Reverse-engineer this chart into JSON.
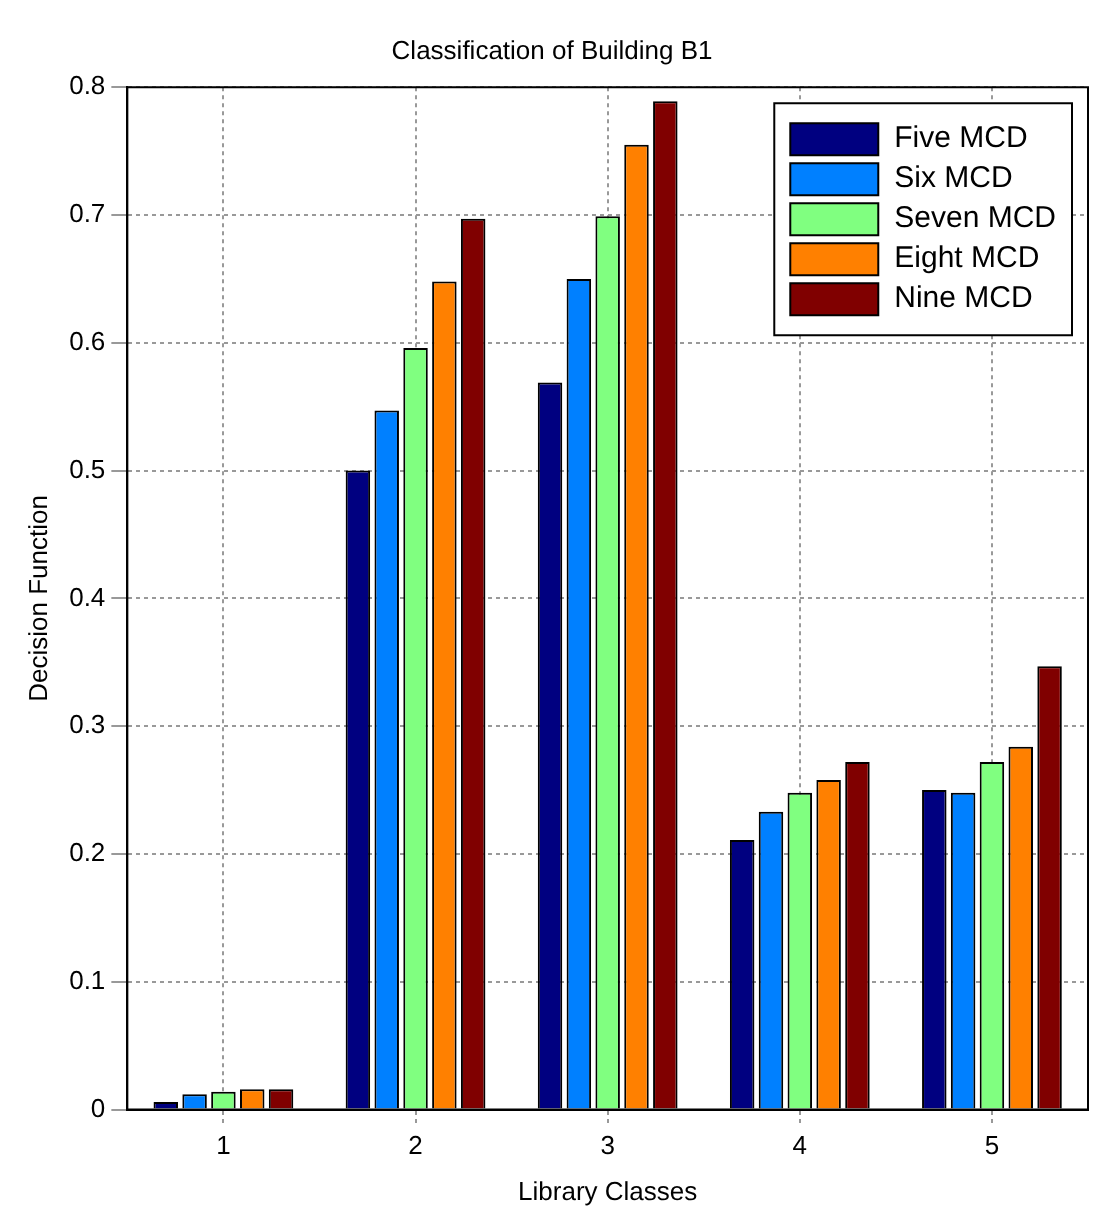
{
  "chart_data": {
    "type": "bar",
    "title": "Classification of Building B1",
    "xlabel": "Library Classes",
    "ylabel": "Decision Function",
    "categories": [
      "1",
      "2",
      "3",
      "4",
      "5"
    ],
    "series": [
      {
        "name": "Five MCD",
        "color": "#000080",
        "values": [
          0.006,
          0.5,
          0.569,
          0.211,
          0.25
        ]
      },
      {
        "name": "Six MCD",
        "color": "#0080ff",
        "values": [
          0.012,
          0.547,
          0.65,
          0.233,
          0.248
        ]
      },
      {
        "name": "Seven MCD",
        "color": "#80ff80",
        "values": [
          0.014,
          0.596,
          0.699,
          0.248,
          0.272
        ]
      },
      {
        "name": "Eight MCD",
        "color": "#ff8000",
        "values": [
          0.016,
          0.648,
          0.755,
          0.258,
          0.284
        ]
      },
      {
        "name": "Nine MCD",
        "color": "#800000",
        "values": [
          0.016,
          0.697,
          0.789,
          0.272,
          0.347
        ]
      }
    ],
    "ylim": [
      0,
      0.8
    ],
    "yticks": [
      0,
      0.1,
      0.2,
      0.3,
      0.4,
      0.5,
      0.6,
      0.7,
      0.8
    ],
    "grid": true,
    "legend": "top right"
  }
}
